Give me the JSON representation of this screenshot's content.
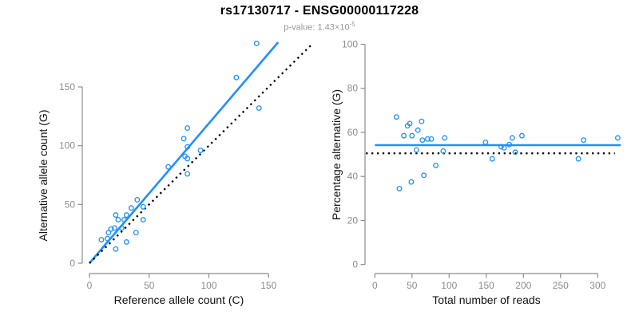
{
  "header": {
    "title": "rs17130717 - ENSG00000117228",
    "subtitle_main": "p-value: 1.43×10",
    "subtitle_exponent": "-5"
  },
  "colors": {
    "accent_blue": "#1E90FF",
    "identity_black": "#000000",
    "axis_gray": "#8c8c8c",
    "subtitle_gray": "#979797"
  },
  "chart_data": [
    {
      "type": "scatter",
      "name": "allele-counts",
      "xlabel": "Reference allele count (C)",
      "ylabel": "Alternative allele count (G)",
      "xticks": [
        0,
        50,
        100,
        150
      ],
      "yticks": [
        0,
        50,
        100,
        150
      ],
      "xlim": [
        0,
        186
      ],
      "ylim": [
        0,
        190
      ],
      "grid": false,
      "points": [
        [
          10,
          20
        ],
        [
          15,
          21
        ],
        [
          16,
          26
        ],
        [
          18,
          29
        ],
        [
          21,
          30
        ],
        [
          22,
          12
        ],
        [
          22,
          41
        ],
        [
          24,
          37
        ],
        [
          27,
          30
        ],
        [
          29,
          37
        ],
        [
          31,
          18
        ],
        [
          31,
          41
        ],
        [
          35,
          47
        ],
        [
          39,
          26
        ],
        [
          40,
          54
        ],
        [
          45,
          37
        ],
        [
          45,
          48
        ],
        [
          66,
          82
        ],
        [
          79,
          106
        ],
        [
          80,
          91
        ],
        [
          82,
          76
        ],
        [
          82,
          89
        ],
        [
          82,
          99
        ],
        [
          82,
          115
        ],
        [
          93,
          96
        ],
        [
          123,
          158
        ],
        [
          140,
          187
        ],
        [
          142,
          132
        ]
      ],
      "lines": [
        {
          "name": "regression-line",
          "style": "solid",
          "color": "#1E90FF",
          "from": [
            0,
            0
          ],
          "to": [
            158,
            188
          ]
        },
        {
          "name": "identity-line",
          "style": "dotted",
          "color": "#000000",
          "from": [
            0,
            0
          ],
          "to": [
            186,
            186
          ]
        }
      ]
    },
    {
      "type": "scatter",
      "name": "percentage-vs-coverage",
      "xlabel": "Total number of reads",
      "ylabel": "Percentage alternative (G)",
      "xticks": [
        0,
        50,
        100,
        150,
        200,
        250,
        300
      ],
      "yticks": [
        0,
        20,
        40,
        60,
        80,
        100
      ],
      "xlim": [
        0,
        332
      ],
      "ylim": [
        0,
        100
      ],
      "grid": false,
      "points": [
        [
          29,
          67
        ],
        [
          33,
          34.5
        ],
        [
          39,
          58.5
        ],
        [
          44,
          63
        ],
        [
          47,
          64
        ],
        [
          49,
          37.5
        ],
        [
          50,
          58.5
        ],
        [
          56,
          52
        ],
        [
          58,
          61
        ],
        [
          63,
          65
        ],
        [
          64,
          56.5
        ],
        [
          66,
          40.5
        ],
        [
          71,
          57
        ],
        [
          76,
          57
        ],
        [
          82,
          45
        ],
        [
          92,
          51.5
        ],
        [
          94,
          57.5
        ],
        [
          149,
          55.5
        ],
        [
          158,
          48
        ],
        [
          170,
          53.5
        ],
        [
          174,
          53
        ],
        [
          181,
          54.5
        ],
        [
          185,
          57.5
        ],
        [
          189,
          51
        ],
        [
          198,
          58.5
        ],
        [
          274,
          48
        ],
        [
          281,
          56.5
        ],
        [
          327,
          57.5
        ]
      ],
      "lines": [
        {
          "name": "mean-percentage-line",
          "style": "solid",
          "color": "#1E90FF",
          "from": [
            0,
            54.2
          ],
          "to": [
            331,
            54.2
          ]
        },
        {
          "name": "null-50-percent-line",
          "style": "dotted",
          "color": "#000000",
          "from": [
            -12,
            50.5
          ],
          "to": [
            323,
            50.5
          ]
        }
      ]
    }
  ]
}
